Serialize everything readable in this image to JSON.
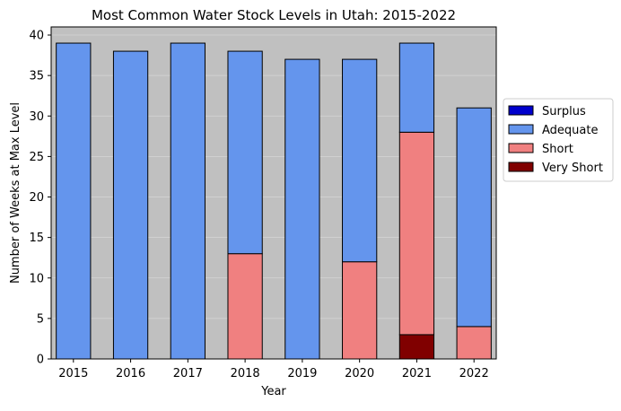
{
  "chart_data": {
    "type": "bar",
    "stacked": true,
    "title": "Most Common Water Stock Levels in Utah: 2015-2022",
    "xlabel": "Year",
    "ylabel": "Number of Weeks at Max Level",
    "categories": [
      "2015",
      "2016",
      "2017",
      "2018",
      "2019",
      "2020",
      "2021",
      "2022"
    ],
    "series": [
      {
        "name": "Very Short",
        "color": "#800000",
        "values": [
          0,
          0,
          0,
          0,
          0,
          0,
          3,
          0
        ]
      },
      {
        "name": "Short",
        "color": "#f08080",
        "values": [
          0,
          0,
          0,
          13,
          0,
          12,
          25,
          4
        ]
      },
      {
        "name": "Adequate",
        "color": "#6495ed",
        "values": [
          39,
          38,
          39,
          25,
          37,
          25,
          11,
          27
        ]
      },
      {
        "name": "Surplus",
        "color": "#0000cd",
        "values": [
          0,
          0,
          0,
          0,
          0,
          0,
          0,
          0
        ]
      }
    ],
    "legend_order": [
      "Surplus",
      "Adequate",
      "Short",
      "Very Short"
    ],
    "ylim": [
      0,
      41
    ],
    "yticks": [
      0,
      5,
      10,
      15,
      20,
      25,
      30,
      35,
      40
    ],
    "grid": "y",
    "legend_position": "right",
    "plot_background": "#c0c0c0",
    "bar_edge_color": "#000000"
  }
}
